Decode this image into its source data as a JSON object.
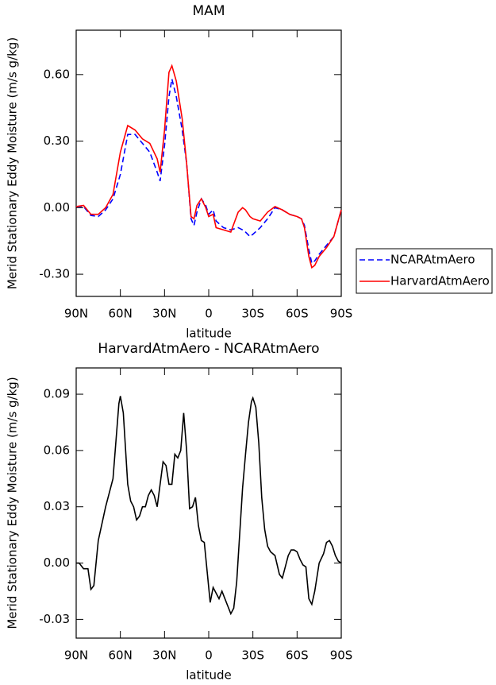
{
  "chart_data": [
    {
      "type": "line",
      "title": "MAM",
      "xlabel": "latitude",
      "ylabel": "Merid Stationary Eddy Moisture (m/s g/kg)",
      "x": [
        90,
        85,
        80,
        75,
        70,
        65,
        60,
        55,
        50,
        45,
        40,
        35,
        33,
        30,
        27,
        25,
        22,
        18,
        15,
        12,
        10,
        8,
        5,
        2,
        0,
        -3,
        -5,
        -10,
        -15,
        -20,
        -23,
        -25,
        -28,
        -30,
        -35,
        -40,
        -45,
        -50,
        -55,
        -60,
        -63,
        -65,
        -68,
        -70,
        -72,
        -75,
        -80,
        -85,
        -90
      ],
      "series": [
        {
          "name": "NCARAtmAero",
          "color": "#0000ff",
          "line_style": "dashed",
          "values": [
            0.005,
            0.005,
            -0.035,
            -0.04,
            -0.01,
            0.04,
            0.15,
            0.33,
            0.33,
            0.29,
            0.25,
            0.16,
            0.12,
            0.28,
            0.5,
            0.58,
            0.5,
            0.35,
            0.2,
            -0.05,
            -0.08,
            -0.02,
            0.04,
            0.01,
            -0.03,
            -0.01,
            -0.06,
            -0.09,
            -0.1,
            -0.09,
            -0.1,
            -0.11,
            -0.13,
            -0.12,
            -0.09,
            -0.05,
            0.0,
            -0.01,
            -0.03,
            -0.04,
            -0.05,
            -0.08,
            -0.19,
            -0.25,
            -0.24,
            -0.21,
            -0.17,
            -0.13,
            -0.01
          ]
        },
        {
          "name": "HarvardAtmAero",
          "color": "#ff0000",
          "line_style": "solid",
          "values": [
            0.005,
            0.01,
            -0.03,
            -0.03,
            0.0,
            0.06,
            0.25,
            0.37,
            0.35,
            0.31,
            0.29,
            0.22,
            0.16,
            0.35,
            0.61,
            0.64,
            0.57,
            0.4,
            0.2,
            -0.04,
            -0.05,
            0.01,
            0.04,
            0.0,
            -0.04,
            -0.03,
            -0.09,
            -0.1,
            -0.11,
            -0.02,
            0.0,
            -0.01,
            -0.04,
            -0.05,
            -0.06,
            -0.02,
            0.005,
            -0.01,
            -0.03,
            -0.04,
            -0.05,
            -0.09,
            -0.22,
            -0.27,
            -0.26,
            -0.22,
            -0.18,
            -0.13,
            -0.01
          ]
        }
      ],
      "xlim": [
        90,
        -90
      ],
      "xticks": [
        {
          "value": 90,
          "label": "90N"
        },
        {
          "value": 60,
          "label": "60N"
        },
        {
          "value": 30,
          "label": "30N"
        },
        0,
        {
          "value": -30,
          "label": "30S"
        },
        {
          "value": -60,
          "label": "60S"
        },
        {
          "value": -90,
          "label": "90S"
        }
      ],
      "ylim": [
        -0.4,
        0.8
      ],
      "yticks": [
        {
          "value": 0.6,
          "label": "0.60"
        },
        {
          "value": 0.3,
          "label": "0.30"
        },
        {
          "value": 0,
          "label": "0.00"
        },
        {
          "value": -0.3,
          "label": "-0.30"
        }
      ],
      "legend": "outside-right"
    },
    {
      "type": "line",
      "title": "HarvardAtmAero - NCARAtmAero",
      "xlabel": "latitude",
      "ylabel": "Merid Stationary Eddy Moisture (m/s g/kg)",
      "x": [
        90,
        88,
        85,
        82,
        80,
        78,
        75,
        70,
        65,
        63,
        61,
        60,
        58,
        55,
        53,
        51,
        49,
        47,
        45,
        43,
        41,
        39,
        37,
        35,
        33,
        31,
        29,
        27,
        25,
        23,
        21,
        19,
        17,
        15,
        13,
        11,
        9,
        7,
        5,
        3,
        1,
        -1,
        -3,
        -5,
        -7,
        -9,
        -11,
        -13,
        -15,
        -17,
        -19,
        -21,
        -23,
        -25,
        -27,
        -29,
        -30,
        -32,
        -34,
        -36,
        -38,
        -40,
        -42,
        -45,
        -48,
        -50,
        -52,
        -54,
        -56,
        -58,
        -60,
        -62,
        -64,
        -66,
        -68,
        -70,
        -72,
        -75,
        -78,
        -80,
        -82,
        -84,
        -86,
        -88,
        -90
      ],
      "values": [
        0.0,
        0.0,
        -0.003,
        -0.003,
        -0.014,
        -0.012,
        0.012,
        0.03,
        0.045,
        0.065,
        0.085,
        0.089,
        0.08,
        0.042,
        0.033,
        0.03,
        0.023,
        0.025,
        0.03,
        0.03,
        0.036,
        0.039,
        0.036,
        0.03,
        0.042,
        0.054,
        0.052,
        0.042,
        0.042,
        0.058,
        0.056,
        0.06,
        0.08,
        0.06,
        0.029,
        0.03,
        0.035,
        0.02,
        0.012,
        0.011,
        -0.005,
        -0.021,
        -0.013,
        -0.016,
        -0.019,
        -0.015,
        -0.019,
        -0.023,
        -0.027,
        -0.024,
        -0.01,
        0.015,
        0.04,
        0.058,
        0.075,
        0.086,
        0.088,
        0.083,
        0.064,
        0.035,
        0.018,
        0.009,
        0.006,
        0.004,
        -0.006,
        -0.008,
        -0.002,
        0.004,
        0.007,
        0.007,
        0.006,
        0.002,
        -0.001,
        -0.002,
        -0.019,
        -0.022,
        -0.015,
        0.0,
        0.005,
        0.011,
        0.012,
        0.009,
        0.004,
        0.001,
        0.0
      ],
      "color": "#000000",
      "xlim": [
        90,
        -90
      ],
      "xticks": [
        {
          "value": 90,
          "label": "90N"
        },
        {
          "value": 60,
          "label": "60N"
        },
        {
          "value": 30,
          "label": "30N"
        },
        0,
        {
          "value": -30,
          "label": "30S"
        },
        {
          "value": -60,
          "label": "60S"
        },
        {
          "value": -90,
          "label": "90S"
        }
      ],
      "ylim": [
        -0.04,
        0.104
      ],
      "yticks": [
        0.09,
        0.06,
        0.03,
        {
          "value": 0,
          "label": "0.00"
        },
        -0.03
      ]
    }
  ]
}
